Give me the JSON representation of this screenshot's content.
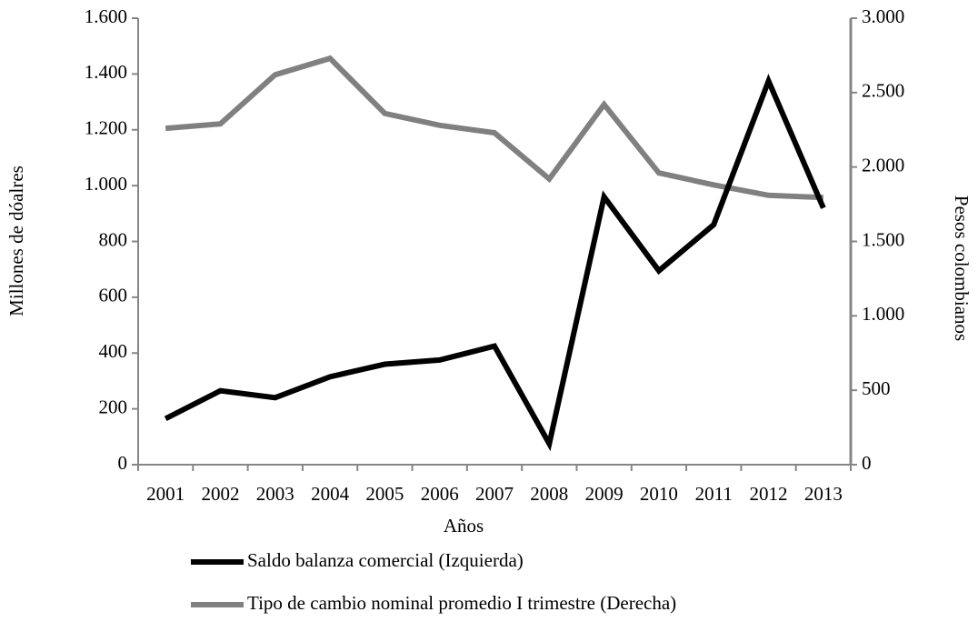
{
  "chart_data": {
    "type": "line",
    "categories": [
      "2001",
      "2002",
      "2003",
      "2004",
      "2005",
      "2006",
      "2007",
      "2008",
      "2009",
      "2010",
      "2011",
      "2012",
      "2013"
    ],
    "x_label": "Años",
    "y_label": "Millones de dóalres",
    "y2_label": "Pesos colombianos",
    "series": [
      {
        "name": "Saldo balanza comercial (Izquierda)",
        "color": "#000000",
        "values": [
          165,
          265,
          240,
          315,
          360,
          375,
          425,
          75,
          960,
          695,
          860,
          1375,
          920
        ]
      },
      {
        "name": "Tipo de cambio nominal promedio I trimestre (Derecha)",
        "color": "#808080",
        "axis": "y2",
        "values": [
          2260,
          2290,
          2620,
          2730,
          2360,
          2280,
          2230,
          1920,
          2420,
          1960,
          1880,
          1810,
          1795
        ]
      }
    ],
    "ylim": [
      0,
      1600
    ],
    "yticks": [
      0,
      200,
      400,
      600,
      800,
      {
        "value": 1000,
        "label": "1.000"
      },
      {
        "value": 1200,
        "label": "1.200"
      },
      {
        "value": 1400,
        "label": "1.400"
      },
      {
        "value": 1600,
        "label": "1.600"
      }
    ],
    "y2lim": [
      0,
      3000
    ],
    "y2ticks": [
      0,
      500,
      {
        "value": 1000,
        "label": "1.000"
      },
      {
        "value": 1500,
        "label": "1.500"
      },
      {
        "value": 2000,
        "label": "2.000"
      },
      {
        "value": 2500,
        "label": "2.500"
      },
      {
        "value": 3000,
        "label": "3.000"
      }
    ],
    "legend": "bottom"
  }
}
